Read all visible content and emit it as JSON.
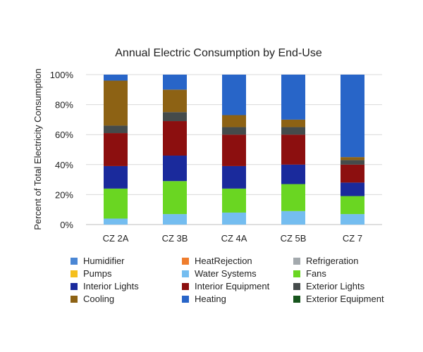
{
  "chart_data": {
    "type": "bar",
    "stacked": true,
    "title": "Annual Electric Consumption by End-Use",
    "xlabel": "",
    "ylabel": "Percent of Total Electricity Consumption",
    "ylim": [
      0,
      100
    ],
    "y_ticks": [
      "0%",
      "20%",
      "40%",
      "60%",
      "80%",
      "100%"
    ],
    "grid": "horizontal",
    "legend_position": "bottom",
    "categories": [
      "CZ 2A",
      "CZ 3B",
      "CZ 4A",
      "CZ 5B",
      "CZ 7"
    ],
    "series": [
      {
        "name": "Humidifier",
        "color": "#4a86d4",
        "values": [
          0,
          0,
          0,
          0,
          0
        ]
      },
      {
        "name": "HeatRejection",
        "color": "#ef7d2d",
        "values": [
          0,
          0,
          0,
          0,
          0
        ]
      },
      {
        "name": "Refrigeration",
        "color": "#a3a9ad",
        "values": [
          0,
          0,
          0,
          0,
          0
        ]
      },
      {
        "name": "Pumps",
        "color": "#f5bf1d",
        "values": [
          0,
          0,
          0,
          0,
          0
        ]
      },
      {
        "name": "Water Systems",
        "color": "#74bdf0",
        "values": [
          4,
          7,
          8,
          9,
          7
        ]
      },
      {
        "name": "Fans",
        "color": "#6ad622",
        "values": [
          20,
          22,
          16,
          18,
          12
        ]
      },
      {
        "name": "Interior Lights",
        "color": "#1a2a9c",
        "values": [
          15,
          17,
          15,
          13,
          9
        ]
      },
      {
        "name": "Interior Equipment",
        "color": "#8c0f0f",
        "values": [
          22,
          23,
          21,
          20,
          12
        ]
      },
      {
        "name": "Exterior Lights",
        "color": "#454b4b",
        "values": [
          5,
          6,
          5,
          5,
          3
        ]
      },
      {
        "name": "Cooling",
        "color": "#8d6214",
        "values": [
          30,
          15,
          8,
          5,
          2
        ]
      },
      {
        "name": "Heating",
        "color": "#2865c8",
        "values": [
          4,
          10,
          27,
          30,
          55
        ]
      },
      {
        "name": "Exterior Equipment",
        "color": "#17551d",
        "values": [
          0,
          0,
          0,
          0,
          0
        ]
      }
    ]
  }
}
